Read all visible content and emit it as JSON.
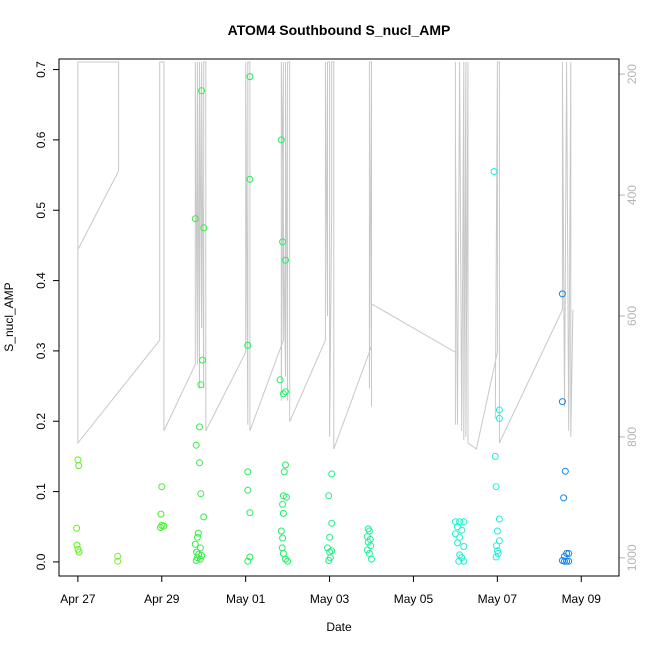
{
  "chart_data": {
    "type": "scatter",
    "title": "ATOM4 Southbound S_nucl_AMP",
    "xlabel": "Date",
    "ylabel": "S_nucl_AMP",
    "x_ticks": [
      "Apr 27",
      "Apr 29",
      "May 01",
      "May 03",
      "May 05",
      "May 07",
      "May 09"
    ],
    "x_range_days": [
      -0.45,
      12.9
    ],
    "ylim": [
      -0.02,
      0.715
    ],
    "y_ticks": [
      0.0,
      0.1,
      0.2,
      0.3,
      0.4,
      0.5,
      0.6,
      0.7
    ],
    "y2_ticks": [
      200,
      400,
      600,
      800,
      1000
    ],
    "y2lim": [
      1030,
      175
    ],
    "series": [
      {
        "points": [
          [
            0.0,
            0.145,
            "#66ee22"
          ],
          [
            0.02,
            0.137,
            "#66ee22"
          ],
          [
            -0.03,
            0.048,
            "#66ee22"
          ],
          [
            -0.02,
            0.024,
            "#66ee22"
          ],
          [
            0.0,
            0.018,
            "#66ee22"
          ],
          [
            0.03,
            0.014,
            "#66ee22"
          ],
          [
            0.95,
            0.008,
            "#77ee33"
          ],
          [
            0.95,
            0.001,
            "#77ee33"
          ],
          [
            2.0,
            0.107,
            "#44ee33"
          ],
          [
            1.98,
            0.068,
            "#44ee33"
          ],
          [
            2.0,
            0.052,
            "#44ee33"
          ],
          [
            2.05,
            0.051,
            "#44ee33"
          ],
          [
            1.97,
            0.049,
            "#44ee33"
          ],
          [
            2.8,
            0.488,
            "#33ee44"
          ],
          [
            2.95,
            0.67,
            "#33ee44"
          ],
          [
            3.0,
            0.475,
            "#33ee44"
          ],
          [
            2.97,
            0.287,
            "#33ee44"
          ],
          [
            2.93,
            0.252,
            "#33ee44"
          ],
          [
            2.9,
            0.192,
            "#33ee44"
          ],
          [
            2.82,
            0.166,
            "#33ee44"
          ],
          [
            2.9,
            0.141,
            "#33ee44"
          ],
          [
            2.93,
            0.097,
            "#33ee44"
          ],
          [
            3.0,
            0.064,
            "#33ee44"
          ],
          [
            2.87,
            0.041,
            "#33ee44"
          ],
          [
            2.85,
            0.035,
            "#33ee44"
          ],
          [
            2.8,
            0.025,
            "#33ee44"
          ],
          [
            2.92,
            0.02,
            "#33ee44"
          ],
          [
            2.83,
            0.014,
            "#33ee44"
          ],
          [
            2.88,
            0.011,
            "#33ee44"
          ],
          [
            2.95,
            0.009,
            "#33ee44"
          ],
          [
            2.85,
            0.006,
            "#33ee44"
          ],
          [
            2.92,
            0.004,
            "#33ee44"
          ],
          [
            2.82,
            0.002,
            "#33ee44"
          ],
          [
            4.1,
            0.69,
            "#22ee55"
          ],
          [
            4.1,
            0.544,
            "#22ee55"
          ],
          [
            4.05,
            0.308,
            "#22ee55"
          ],
          [
            4.05,
            0.128,
            "#22ee55"
          ],
          [
            4.05,
            0.102,
            "#22ee55"
          ],
          [
            4.1,
            0.07,
            "#22ee55"
          ],
          [
            4.1,
            0.007,
            "#22ee55"
          ],
          [
            4.05,
            0.001,
            "#22ee55"
          ],
          [
            4.85,
            0.6,
            "#22ee66"
          ],
          [
            4.88,
            0.455,
            "#22ee66"
          ],
          [
            4.95,
            0.429,
            "#22ee66"
          ],
          [
            4.82,
            0.259,
            "#22ee66"
          ],
          [
            4.95,
            0.242,
            "#22ee66"
          ],
          [
            4.9,
            0.239,
            "#22ee66"
          ],
          [
            4.95,
            0.138,
            "#22ee66"
          ],
          [
            4.92,
            0.128,
            "#22ee66"
          ],
          [
            4.9,
            0.094,
            "#22ee66"
          ],
          [
            4.97,
            0.092,
            "#22ee66"
          ],
          [
            4.88,
            0.082,
            "#22ee66"
          ],
          [
            4.9,
            0.069,
            "#22ee66"
          ],
          [
            4.85,
            0.044,
            "#22ee66"
          ],
          [
            4.88,
            0.034,
            "#22ee66"
          ],
          [
            4.87,
            0.02,
            "#22ee66"
          ],
          [
            4.9,
            0.012,
            "#22ee66"
          ],
          [
            4.95,
            0.004,
            "#22ee66"
          ],
          [
            5.0,
            0.001,
            "#22ee66"
          ],
          [
            6.05,
            0.125,
            "#22ee88"
          ],
          [
            5.98,
            0.094,
            "#22ee88"
          ],
          [
            6.05,
            0.055,
            "#22ee88"
          ],
          [
            6.0,
            0.035,
            "#22ee88"
          ],
          [
            5.95,
            0.02,
            "#22ee88"
          ],
          [
            6.05,
            0.016,
            "#22ee88"
          ],
          [
            6.0,
            0.014,
            "#22ee88"
          ],
          [
            6.02,
            0.006,
            "#22ee88"
          ],
          [
            5.98,
            0.002,
            "#22ee88"
          ],
          [
            6.92,
            0.047,
            "#22ee99"
          ],
          [
            6.95,
            0.044,
            "#22ee99"
          ],
          [
            6.9,
            0.036,
            "#22ee99"
          ],
          [
            6.97,
            0.032,
            "#22ee99"
          ],
          [
            6.92,
            0.028,
            "#22ee99"
          ],
          [
            6.98,
            0.023,
            "#22ee99"
          ],
          [
            6.9,
            0.017,
            "#22ee99"
          ],
          [
            6.95,
            0.012,
            "#22ee99"
          ],
          [
            7.0,
            0.004,
            "#22ee99"
          ],
          [
            9.0,
            0.057,
            "#22eecc"
          ],
          [
            9.1,
            0.057,
            "#22eecc"
          ],
          [
            9.2,
            0.057,
            "#22eecc"
          ],
          [
            9.05,
            0.05,
            "#22eecc"
          ],
          [
            9.15,
            0.045,
            "#22eecc"
          ],
          [
            9.0,
            0.04,
            "#22eecc"
          ],
          [
            9.1,
            0.035,
            "#22eecc"
          ],
          [
            9.05,
            0.027,
            "#22eecc"
          ],
          [
            9.2,
            0.022,
            "#22eecc"
          ],
          [
            9.1,
            0.01,
            "#22eecc"
          ],
          [
            9.15,
            0.006,
            "#22eecc"
          ],
          [
            9.08,
            0.001,
            "#22eecc"
          ],
          [
            9.2,
            0.001,
            "#22eecc"
          ],
          [
            9.92,
            0.555,
            "#22eedd"
          ],
          [
            10.05,
            0.216,
            "#22eedd"
          ],
          [
            10.05,
            0.204,
            "#22eedd"
          ],
          [
            9.95,
            0.15,
            "#22eedd"
          ],
          [
            9.97,
            0.107,
            "#22eedd"
          ],
          [
            10.05,
            0.061,
            "#22eedd"
          ],
          [
            10.0,
            0.044,
            "#22eedd"
          ],
          [
            10.05,
            0.03,
            "#22eedd"
          ],
          [
            9.98,
            0.023,
            "#22eedd"
          ],
          [
            10.0,
            0.016,
            "#22eedd"
          ],
          [
            10.02,
            0.012,
            "#22eedd"
          ],
          [
            9.97,
            0.007,
            "#22eedd"
          ],
          [
            11.55,
            0.381,
            "#1188ee"
          ],
          [
            11.55,
            0.228,
            "#1188ee"
          ],
          [
            11.62,
            0.129,
            "#1188ee"
          ],
          [
            11.58,
            0.091,
            "#1188ee"
          ],
          [
            11.65,
            0.012,
            "#1188ee"
          ],
          [
            11.7,
            0.012,
            "#1188ee"
          ],
          [
            11.6,
            0.008,
            "#1188ee"
          ],
          [
            11.55,
            0.002,
            "#1188ee"
          ],
          [
            11.6,
            0.001,
            "#1188ee"
          ],
          [
            11.65,
            0.001,
            "#1188ee"
          ],
          [
            11.7,
            0.001,
            "#1188ee"
          ]
        ]
      },
      {
        "depth_trace": [
          [
            0.0,
            180
          ],
          [
            0.0,
            490
          ],
          [
            0.97,
            360
          ],
          [
            0.97,
            180
          ],
          [
            0.97,
            180
          ],
          [
            0.0,
            180
          ],
          [
            0.0,
            810
          ],
          [
            1.95,
            640
          ],
          [
            1.95,
            180
          ],
          [
            2.05,
            180
          ],
          [
            2.05,
            790
          ],
          [
            2.8,
            680
          ],
          [
            2.8,
            180
          ],
          [
            2.85,
            680
          ],
          [
            2.85,
            180
          ],
          [
            2.9,
            720
          ],
          [
            2.9,
            180
          ],
          [
            2.95,
            620
          ],
          [
            2.95,
            180
          ],
          [
            3.0,
            720
          ],
          [
            3.0,
            180
          ],
          [
            3.05,
            180
          ],
          [
            3.05,
            790
          ],
          [
            4.0,
            660
          ],
          [
            4.0,
            180
          ],
          [
            4.05,
            780
          ],
          [
            4.05,
            180
          ],
          [
            4.1,
            180
          ],
          [
            4.1,
            790
          ],
          [
            4.9,
            640
          ],
          [
            4.9,
            180
          ],
          [
            4.85,
            740
          ],
          [
            4.85,
            180
          ],
          [
            4.95,
            700
          ],
          [
            4.95,
            180
          ],
          [
            5.0,
            740
          ],
          [
            5.0,
            180
          ],
          [
            5.05,
            180
          ],
          [
            5.05,
            775
          ],
          [
            5.9,
            640
          ],
          [
            5.9,
            180
          ],
          [
            5.95,
            600
          ],
          [
            5.95,
            180
          ],
          [
            6.0,
            180
          ],
          [
            6.0,
            800
          ],
          [
            6.05,
            420
          ],
          [
            6.05,
            180
          ],
          [
            6.1,
            180
          ],
          [
            6.1,
            820
          ],
          [
            7.0,
            650
          ],
          [
            7.0,
            180
          ],
          [
            6.95,
            720
          ],
          [
            6.95,
            180
          ],
          [
            7.0,
            180
          ],
          [
            7.0,
            750
          ],
          [
            7.0,
            580
          ],
          [
            9.0,
            660
          ],
          [
            9.0,
            180
          ],
          [
            9.0,
            780
          ],
          [
            9.0,
            300
          ],
          [
            9.05,
            780
          ],
          [
            9.1,
            180
          ],
          [
            9.15,
            790
          ],
          [
            9.2,
            180
          ],
          [
            9.2,
            805
          ],
          [
            9.25,
            180
          ],
          [
            9.25,
            800
          ],
          [
            9.3,
            180
          ],
          [
            9.3,
            810
          ],
          [
            9.5,
            820
          ],
          [
            10.0,
            660
          ],
          [
            10.0,
            180
          ],
          [
            9.95,
            770
          ],
          [
            10.0,
            180
          ],
          [
            10.05,
            180
          ],
          [
            10.05,
            810
          ],
          [
            11.55,
            590
          ],
          [
            11.55,
            180
          ],
          [
            11.6,
            750
          ],
          [
            11.65,
            180
          ],
          [
            11.7,
            790
          ],
          [
            11.75,
            180
          ],
          [
            11.75,
            800
          ],
          [
            11.8,
            590
          ]
        ]
      }
    ]
  }
}
